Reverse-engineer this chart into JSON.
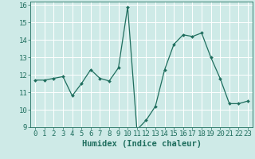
{
  "x": [
    0,
    1,
    2,
    3,
    4,
    5,
    6,
    7,
    8,
    9,
    10,
    11,
    12,
    13,
    14,
    15,
    16,
    17,
    18,
    19,
    20,
    21,
    22,
    23
  ],
  "y": [
    11.7,
    11.7,
    11.8,
    11.9,
    10.8,
    11.5,
    12.3,
    11.8,
    11.65,
    12.4,
    15.9,
    8.85,
    9.4,
    10.2,
    12.3,
    13.75,
    14.3,
    14.2,
    14.4,
    13.0,
    11.8,
    10.35,
    10.35,
    10.5
  ],
  "xlabel": "Humidex (Indice chaleur)",
  "xlim": [
    -0.5,
    23.5
  ],
  "ylim": [
    9,
    16.2
  ],
  "yticks": [
    9,
    10,
    11,
    12,
    13,
    14,
    15,
    16
  ],
  "xticks": [
    0,
    1,
    2,
    3,
    4,
    5,
    6,
    7,
    8,
    9,
    10,
    11,
    12,
    13,
    14,
    15,
    16,
    17,
    18,
    19,
    20,
    21,
    22,
    23
  ],
  "line_color": "#1f6e5e",
  "marker_color": "#1f6e5e",
  "bg_color": "#ceeae7",
  "grid_color": "#ffffff",
  "axis_color": "#1f6e5e",
  "tick_label_color": "#1f6e5e",
  "xlabel_color": "#1f6e5e",
  "xlabel_fontsize": 7.5,
  "tick_fontsize": 6.5
}
